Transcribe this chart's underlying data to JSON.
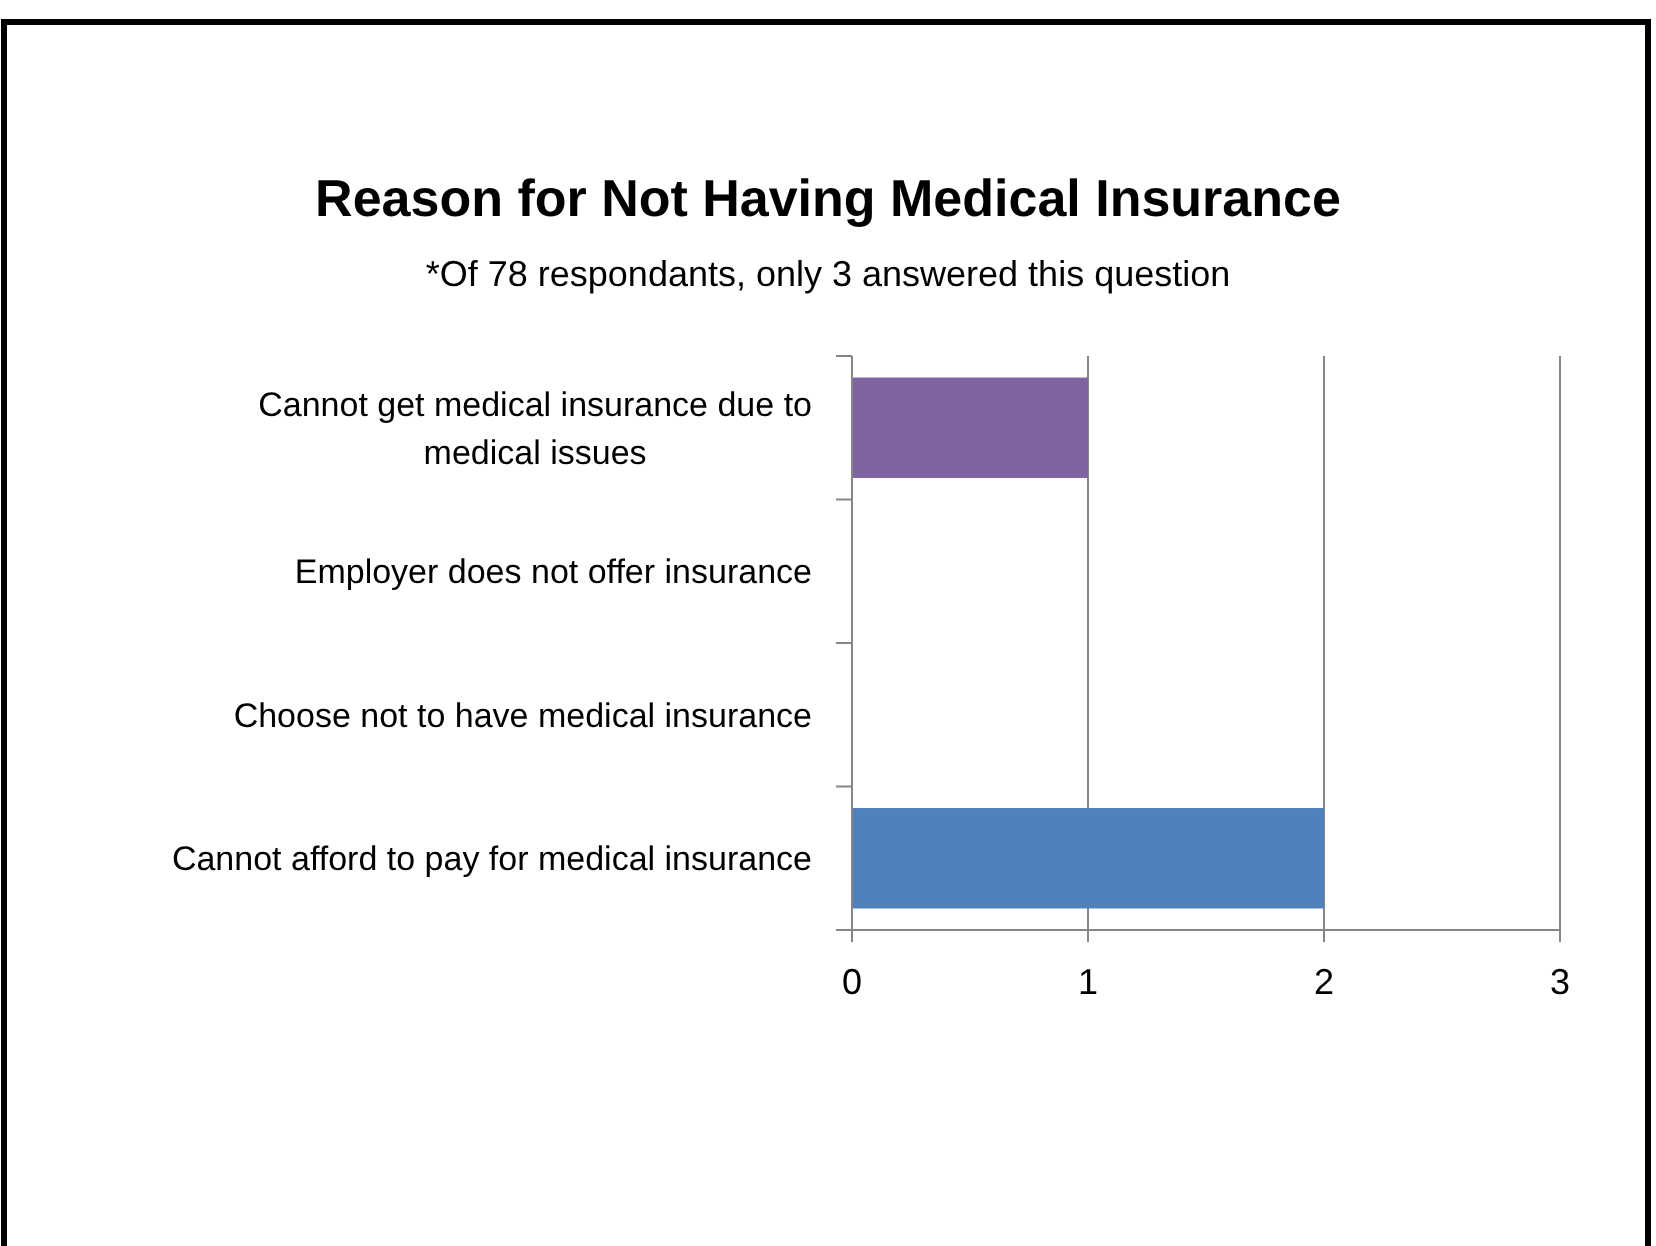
{
  "chart_data": {
    "type": "bar",
    "orientation": "horizontal",
    "title": "Reason for Not Having Medical Insurance",
    "subtitle": "*Of 78 respondants, only 3 answered this question",
    "categories": [
      "Cannot get medical insurance due to medical issues",
      "Employer does not offer insurance",
      "Choose not to have medical insurance",
      "Cannot afford to pay for medical insurance"
    ],
    "values": [
      1,
      0,
      0,
      2
    ],
    "colors": [
      "#8064a2",
      "#8064a2",
      "#4f81bd",
      "#4f81bd"
    ],
    "xlim": [
      0,
      3
    ],
    "xticks": [
      0,
      1,
      2,
      3
    ],
    "grid": "x"
  }
}
